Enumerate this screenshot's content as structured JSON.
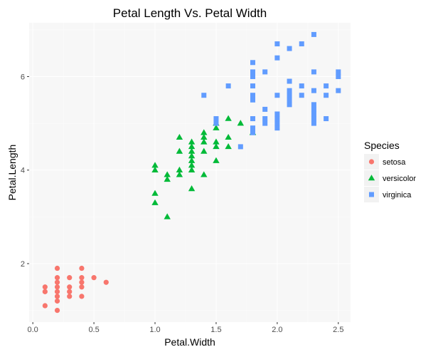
{
  "chart_data": {
    "type": "scatter",
    "title": "Petal Length Vs. Petal Width",
    "xlabel": "Petal.Width",
    "ylabel": "Petal.Length",
    "xlim": [
      -0.03,
      2.6
    ],
    "ylim": [
      0.75,
      7.15
    ],
    "x_ticks": [
      0.0,
      0.5,
      1.0,
      1.5,
      2.0,
      2.5
    ],
    "x_tick_labels": [
      "0.0",
      "0.5",
      "1.0",
      "1.5",
      "2.0",
      "2.5"
    ],
    "y_ticks": [
      2,
      4,
      6
    ],
    "y_tick_labels": [
      "2",
      "4",
      "6"
    ],
    "grid": true,
    "panel_background": "#f7f7f7",
    "legend": {
      "title": "Species",
      "position": "right"
    },
    "series": [
      {
        "name": "setosa",
        "color": "#f8766d",
        "marker": "circle",
        "points": [
          [
            0.1,
            1.1
          ],
          [
            0.1,
            1.4
          ],
          [
            0.1,
            1.5
          ],
          [
            0.2,
            1.0
          ],
          [
            0.2,
            1.2
          ],
          [
            0.2,
            1.3
          ],
          [
            0.2,
            1.4
          ],
          [
            0.2,
            1.5
          ],
          [
            0.2,
            1.6
          ],
          [
            0.2,
            1.7
          ],
          [
            0.2,
            1.9
          ],
          [
            0.3,
            1.3
          ],
          [
            0.3,
            1.4
          ],
          [
            0.3,
            1.5
          ],
          [
            0.3,
            1.7
          ],
          [
            0.4,
            1.3
          ],
          [
            0.4,
            1.5
          ],
          [
            0.4,
            1.6
          ],
          [
            0.4,
            1.7
          ],
          [
            0.4,
            1.9
          ],
          [
            0.5,
            1.7
          ],
          [
            0.6,
            1.6
          ]
        ]
      },
      {
        "name": "versicolor",
        "color": "#00ba38",
        "marker": "triangle",
        "points": [
          [
            1.0,
            3.3
          ],
          [
            1.0,
            3.5
          ],
          [
            1.0,
            4.0
          ],
          [
            1.0,
            4.1
          ],
          [
            1.1,
            3.0
          ],
          [
            1.1,
            3.8
          ],
          [
            1.1,
            3.9
          ],
          [
            1.2,
            3.9
          ],
          [
            1.2,
            4.0
          ],
          [
            1.2,
            4.4
          ],
          [
            1.2,
            4.7
          ],
          [
            1.3,
            3.6
          ],
          [
            1.3,
            4.0
          ],
          [
            1.3,
            4.1
          ],
          [
            1.3,
            4.2
          ],
          [
            1.3,
            4.3
          ],
          [
            1.3,
            4.4
          ],
          [
            1.3,
            4.5
          ],
          [
            1.3,
            4.6
          ],
          [
            1.4,
            3.9
          ],
          [
            1.4,
            4.4
          ],
          [
            1.4,
            4.6
          ],
          [
            1.4,
            4.7
          ],
          [
            1.4,
            4.8
          ],
          [
            1.5,
            4.2
          ],
          [
            1.5,
            4.5
          ],
          [
            1.5,
            4.6
          ],
          [
            1.5,
            4.9
          ],
          [
            1.5,
            5.0
          ],
          [
            1.6,
            4.5
          ],
          [
            1.6,
            4.7
          ],
          [
            1.6,
            5.1
          ],
          [
            1.7,
            5.0
          ],
          [
            1.8,
            4.8
          ]
        ]
      },
      {
        "name": "virginica",
        "color": "#619cff",
        "marker": "square",
        "points": [
          [
            1.4,
            5.6
          ],
          [
            1.5,
            5.0
          ],
          [
            1.5,
            5.1
          ],
          [
            1.6,
            5.8
          ],
          [
            1.7,
            4.5
          ],
          [
            1.8,
            4.8
          ],
          [
            1.8,
            4.9
          ],
          [
            1.8,
            5.1
          ],
          [
            1.8,
            5.5
          ],
          [
            1.8,
            5.6
          ],
          [
            1.8,
            5.8
          ],
          [
            1.8,
            6.0
          ],
          [
            1.8,
            6.1
          ],
          [
            1.8,
            6.3
          ],
          [
            1.9,
            5.0
          ],
          [
            1.9,
            5.1
          ],
          [
            1.9,
            5.3
          ],
          [
            1.9,
            6.1
          ],
          [
            2.0,
            4.9
          ],
          [
            2.0,
            5.0
          ],
          [
            2.0,
            5.1
          ],
          [
            2.0,
            5.2
          ],
          [
            2.0,
            5.6
          ],
          [
            2.0,
            6.4
          ],
          [
            2.0,
            6.7
          ],
          [
            2.1,
            5.4
          ],
          [
            2.1,
            5.5
          ],
          [
            2.1,
            5.6
          ],
          [
            2.1,
            5.7
          ],
          [
            2.1,
            5.9
          ],
          [
            2.1,
            6.6
          ],
          [
            2.2,
            5.6
          ],
          [
            2.2,
            5.8
          ],
          [
            2.2,
            6.7
          ],
          [
            2.3,
            5.0
          ],
          [
            2.3,
            5.1
          ],
          [
            2.3,
            5.2
          ],
          [
            2.3,
            5.3
          ],
          [
            2.3,
            5.4
          ],
          [
            2.3,
            5.7
          ],
          [
            2.3,
            6.1
          ],
          [
            2.3,
            6.9
          ],
          [
            2.4,
            5.1
          ],
          [
            2.4,
            5.6
          ],
          [
            2.4,
            5.8
          ],
          [
            2.5,
            5.7
          ],
          [
            2.5,
            6.0
          ],
          [
            2.5,
            6.1
          ]
        ]
      }
    ]
  }
}
